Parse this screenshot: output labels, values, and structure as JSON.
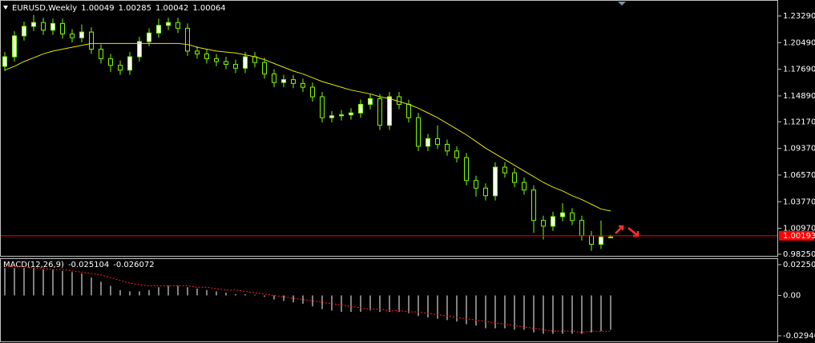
{
  "chart_data": [
    {
      "type": "candlestick",
      "title": "EURUSD,Weekly",
      "open": [
        1.18,
        1.19,
        1.212,
        1.222,
        1.226,
        1.218,
        1.225,
        1.214,
        1.21,
        1.216,
        1.198,
        1.188,
        1.181,
        1.176,
        1.19,
        1.206,
        1.215,
        1.223,
        1.226,
        1.22,
        1.196,
        1.193,
        1.188,
        1.185,
        1.182,
        1.178,
        1.19,
        1.184,
        1.172,
        1.163,
        1.166,
        1.162,
        1.158,
        1.148,
        1.126,
        1.128,
        1.129,
        1.131,
        1.14,
        1.146,
        1.118,
        1.148,
        1.14,
        1.126,
        1.096,
        1.104,
        1.098,
        1.091,
        1.084,
        1.06,
        1.052,
        1.044,
        1.074,
        1.068,
        1.058,
        1.05,
        1.018,
        1.012,
        1.022,
        1.026,
        1.018,
        1.002,
        0.993,
        1.00049
      ],
      "high": [
        1.195,
        1.217,
        1.227,
        1.234,
        1.231,
        1.23,
        1.23,
        1.219,
        1.224,
        1.221,
        1.203,
        1.193,
        1.186,
        1.195,
        1.211,
        1.22,
        1.23,
        1.231,
        1.231,
        1.225,
        1.201,
        1.198,
        1.193,
        1.19,
        1.187,
        1.195,
        1.195,
        1.189,
        1.177,
        1.171,
        1.171,
        1.167,
        1.163,
        1.153,
        1.133,
        1.134,
        1.136,
        1.145,
        1.151,
        1.151,
        1.153,
        1.153,
        1.145,
        1.131,
        1.109,
        1.118,
        1.103,
        1.096,
        1.089,
        1.065,
        1.057,
        1.079,
        1.079,
        1.073,
        1.063,
        1.055,
        1.023,
        1.027,
        1.036,
        1.031,
        1.023,
        1.007,
        1.018,
        1.00285
      ],
      "low": [
        1.175,
        1.185,
        1.207,
        1.217,
        1.213,
        1.213,
        1.209,
        1.205,
        1.205,
        1.193,
        1.183,
        1.174,
        1.171,
        1.171,
        1.185,
        1.201,
        1.21,
        1.218,
        1.215,
        1.191,
        1.188,
        1.183,
        1.18,
        1.177,
        1.173,
        1.173,
        1.179,
        1.167,
        1.158,
        1.158,
        1.157,
        1.153,
        1.143,
        1.121,
        1.121,
        1.123,
        1.124,
        1.126,
        1.135,
        1.113,
        1.113,
        1.135,
        1.121,
        1.091,
        1.091,
        1.093,
        1.086,
        1.079,
        1.055,
        1.043,
        1.039,
        1.039,
        1.063,
        1.053,
        1.045,
        1.005,
        0.998,
        1.007,
        1.017,
        1.013,
        0.997,
        0.986,
        0.988,
        1.00042
      ],
      "close": [
        1.19,
        1.212,
        1.222,
        1.226,
        1.218,
        1.225,
        1.214,
        1.21,
        1.216,
        1.198,
        1.188,
        1.181,
        1.176,
        1.19,
        1.206,
        1.215,
        1.223,
        1.226,
        1.22,
        1.196,
        1.193,
        1.188,
        1.185,
        1.182,
        1.178,
        1.19,
        1.184,
        1.172,
        1.163,
        1.166,
        1.162,
        1.158,
        1.148,
        1.126,
        1.128,
        1.129,
        1.131,
        1.14,
        1.146,
        1.118,
        1.148,
        1.14,
        1.126,
        1.096,
        1.104,
        1.098,
        1.091,
        1.084,
        1.06,
        1.052,
        1.044,
        1.074,
        1.068,
        1.058,
        1.05,
        1.018,
        1.012,
        1.022,
        1.026,
        1.018,
        1.002,
        0.993,
        1.0006,
        1.00064
      ],
      "up_color": "#ffffff",
      "down_color": "#000000",
      "outline_color": "#7cfc00",
      "series": [
        {
          "color": "#e6e600",
          "values": [
            1.176,
            1.18,
            1.185,
            1.189,
            1.193,
            1.196,
            1.198,
            1.2,
            1.202,
            1.204,
            1.204,
            1.204,
            1.204,
            1.204,
            1.204,
            1.204,
            1.204,
            1.204,
            1.204,
            1.203,
            1.2,
            1.198,
            1.196,
            1.195,
            1.194,
            1.192,
            1.19,
            1.187,
            1.183,
            1.179,
            1.175,
            1.172,
            1.168,
            1.164,
            1.161,
            1.158,
            1.155,
            1.153,
            1.151,
            1.148,
            1.146,
            1.143,
            1.14,
            1.136,
            1.131,
            1.126,
            1.12,
            1.114,
            1.108,
            1.101,
            1.094,
            1.088,
            1.082,
            1.076,
            1.07,
            1.064,
            1.058,
            1.053,
            1.049,
            1.044,
            1.04,
            1.035,
            1.03,
            1.028
          ]
        }
      ],
      "price_line": {
        "value": 1.00193,
        "label": "1.00193",
        "color": "#ff0000"
      },
      "ylim": [
        0.9808,
        1.248
      ],
      "yticks": [
        {
          "value": 1.2329,
          "label": "1.23290"
        },
        {
          "value": 1.2049,
          "label": "1.20490"
        },
        {
          "value": 1.1769,
          "label": "1.17690"
        },
        {
          "value": 1.1489,
          "label": "1.14890"
        },
        {
          "value": 1.1217,
          "label": "1.12170"
        },
        {
          "value": 1.0937,
          "label": "1.09370"
        },
        {
          "value": 1.0657,
          "label": "1.06570"
        },
        {
          "value": 1.0377,
          "label": "1.03770"
        },
        {
          "value": 1.0097,
          "label": "1.00970"
        },
        {
          "value": 0.9825,
          "label": "0.98250"
        }
      ]
    },
    {
      "type": "macd",
      "title": "MACD(12,26,9)",
      "series": [
        {
          "kind": "bar",
          "color": "#ffffff",
          "values": [
            0.02,
            0.02,
            0.02,
            0.02,
            0.019,
            0.019,
            0.018,
            0.017,
            0.016,
            0.013,
            0.01,
            0.007,
            0.004,
            0.003,
            0.003,
            0.004,
            0.006,
            0.007,
            0.007,
            0.006,
            0.005,
            0.004,
            0.003,
            0.002,
            0.001,
            0.001,
            0.0005,
            -0.001,
            -0.003,
            -0.004,
            -0.005,
            -0.006,
            -0.008,
            -0.01,
            -0.011,
            -0.012,
            -0.012,
            -0.012,
            -0.011,
            -0.012,
            -0.012,
            -0.012,
            -0.013,
            -0.015,
            -0.016,
            -0.017,
            -0.018,
            -0.019,
            -0.021,
            -0.022,
            -0.024,
            -0.024,
            -0.024,
            -0.025,
            -0.025,
            -0.027,
            -0.028,
            -0.028,
            -0.028,
            -0.028,
            -0.028,
            -0.027,
            -0.026,
            -0.025104
          ]
        },
        {
          "kind": "line",
          "color": "#ff2020",
          "values": [
            0.021,
            0.021,
            0.021,
            0.02,
            0.02,
            0.019,
            0.019,
            0.018,
            0.017,
            0.016,
            0.015,
            0.013,
            0.011,
            0.009,
            0.008,
            0.007,
            0.007,
            0.007,
            0.007,
            0.007,
            0.006,
            0.006,
            0.005,
            0.004,
            0.004,
            0.003,
            0.002,
            0.001,
            0.0,
            -0.001,
            -0.002,
            -0.003,
            -0.004,
            -0.005,
            -0.006,
            -0.007,
            -0.008,
            -0.009,
            -0.01,
            -0.01,
            -0.011,
            -0.011,
            -0.012,
            -0.012,
            -0.013,
            -0.014,
            -0.015,
            -0.016,
            -0.017,
            -0.018,
            -0.019,
            -0.02,
            -0.021,
            -0.022,
            -0.023,
            -0.024,
            -0.025,
            -0.026,
            -0.026,
            -0.026,
            -0.027,
            -0.026,
            -0.0262,
            -0.026072
          ]
        }
      ],
      "ylim": [
        -0.034133,
        0.026593
      ],
      "yticks": [
        0.022506,
        {
          "value": 0,
          "label": "0.00"
        },
        -0.029461
      ]
    }
  ]
}
